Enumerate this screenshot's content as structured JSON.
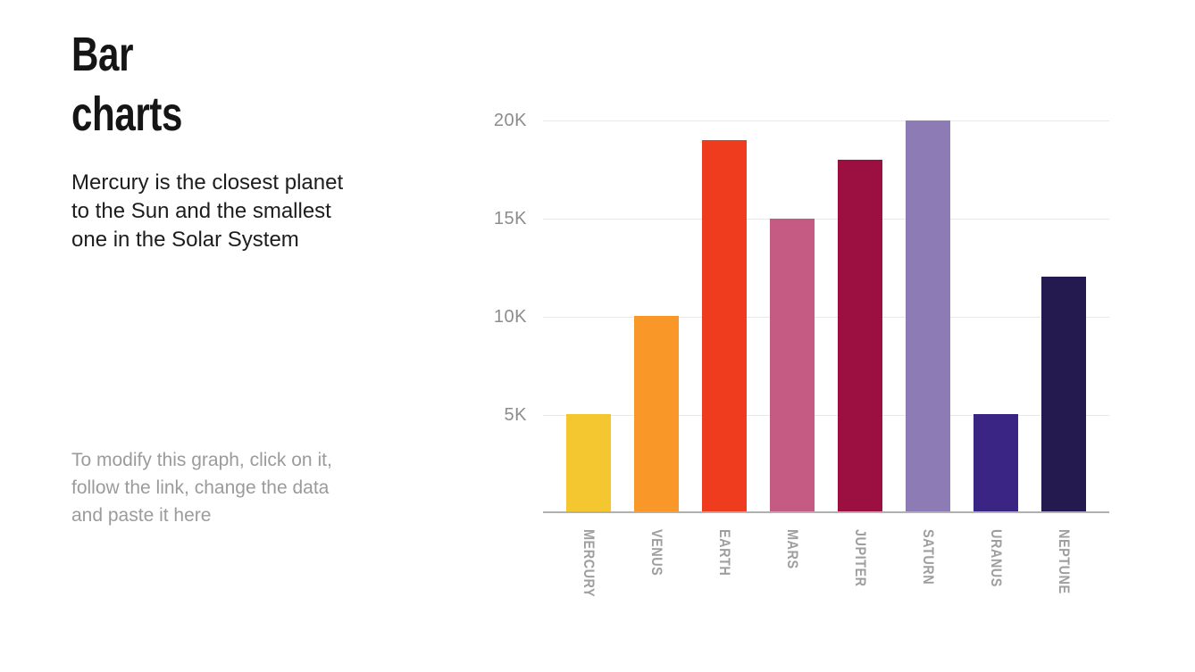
{
  "slide": {
    "title_lines": [
      "Bar",
      "charts"
    ],
    "subtitle_lines": [
      "Mercury is the closest planet",
      "to the Sun and the smallest",
      "one in the Solar System"
    ],
    "note_lines": [
      "To modify this graph, click on it,",
      "follow the link, change the data",
      "and paste it here"
    ]
  },
  "chart_data": {
    "type": "bar",
    "categories": [
      "MERCURY",
      "VENUS",
      "EARTH",
      "MARS",
      "JUPITER",
      "SATURN",
      "URANUS",
      "NEPTUNE"
    ],
    "values": [
      5000,
      10000,
      19000,
      15000,
      18000,
      20000,
      5000,
      12000
    ],
    "bar_colors": [
      "#F4C630",
      "#FA9729",
      "#EF3B1E",
      "#C55B82",
      "#9B1040",
      "#8D7BB5",
      "#3B2584",
      "#251A50"
    ],
    "y_ticks": [
      {
        "label": "5K",
        "value": 5000
      },
      {
        "label": "10K",
        "value": 10000
      },
      {
        "label": "15K",
        "value": 15000
      },
      {
        "label": "20K",
        "value": 20000
      }
    ],
    "ylim": [
      0,
      20000
    ],
    "grid": true,
    "legend": false,
    "x_label_rotation": 90,
    "title": "",
    "xlabel": "",
    "ylabel": ""
  },
  "colors": {
    "background": "#FFFFFF",
    "title_text": "#151515",
    "subtitle_text": "#1D1D1D",
    "note_text": "#9B9B9B",
    "y_tick_text": "#8C8C8C",
    "x_label_text": "#9E9E9E",
    "gridline": "#E8E8E8",
    "axis_line": "#B0B0B0"
  }
}
